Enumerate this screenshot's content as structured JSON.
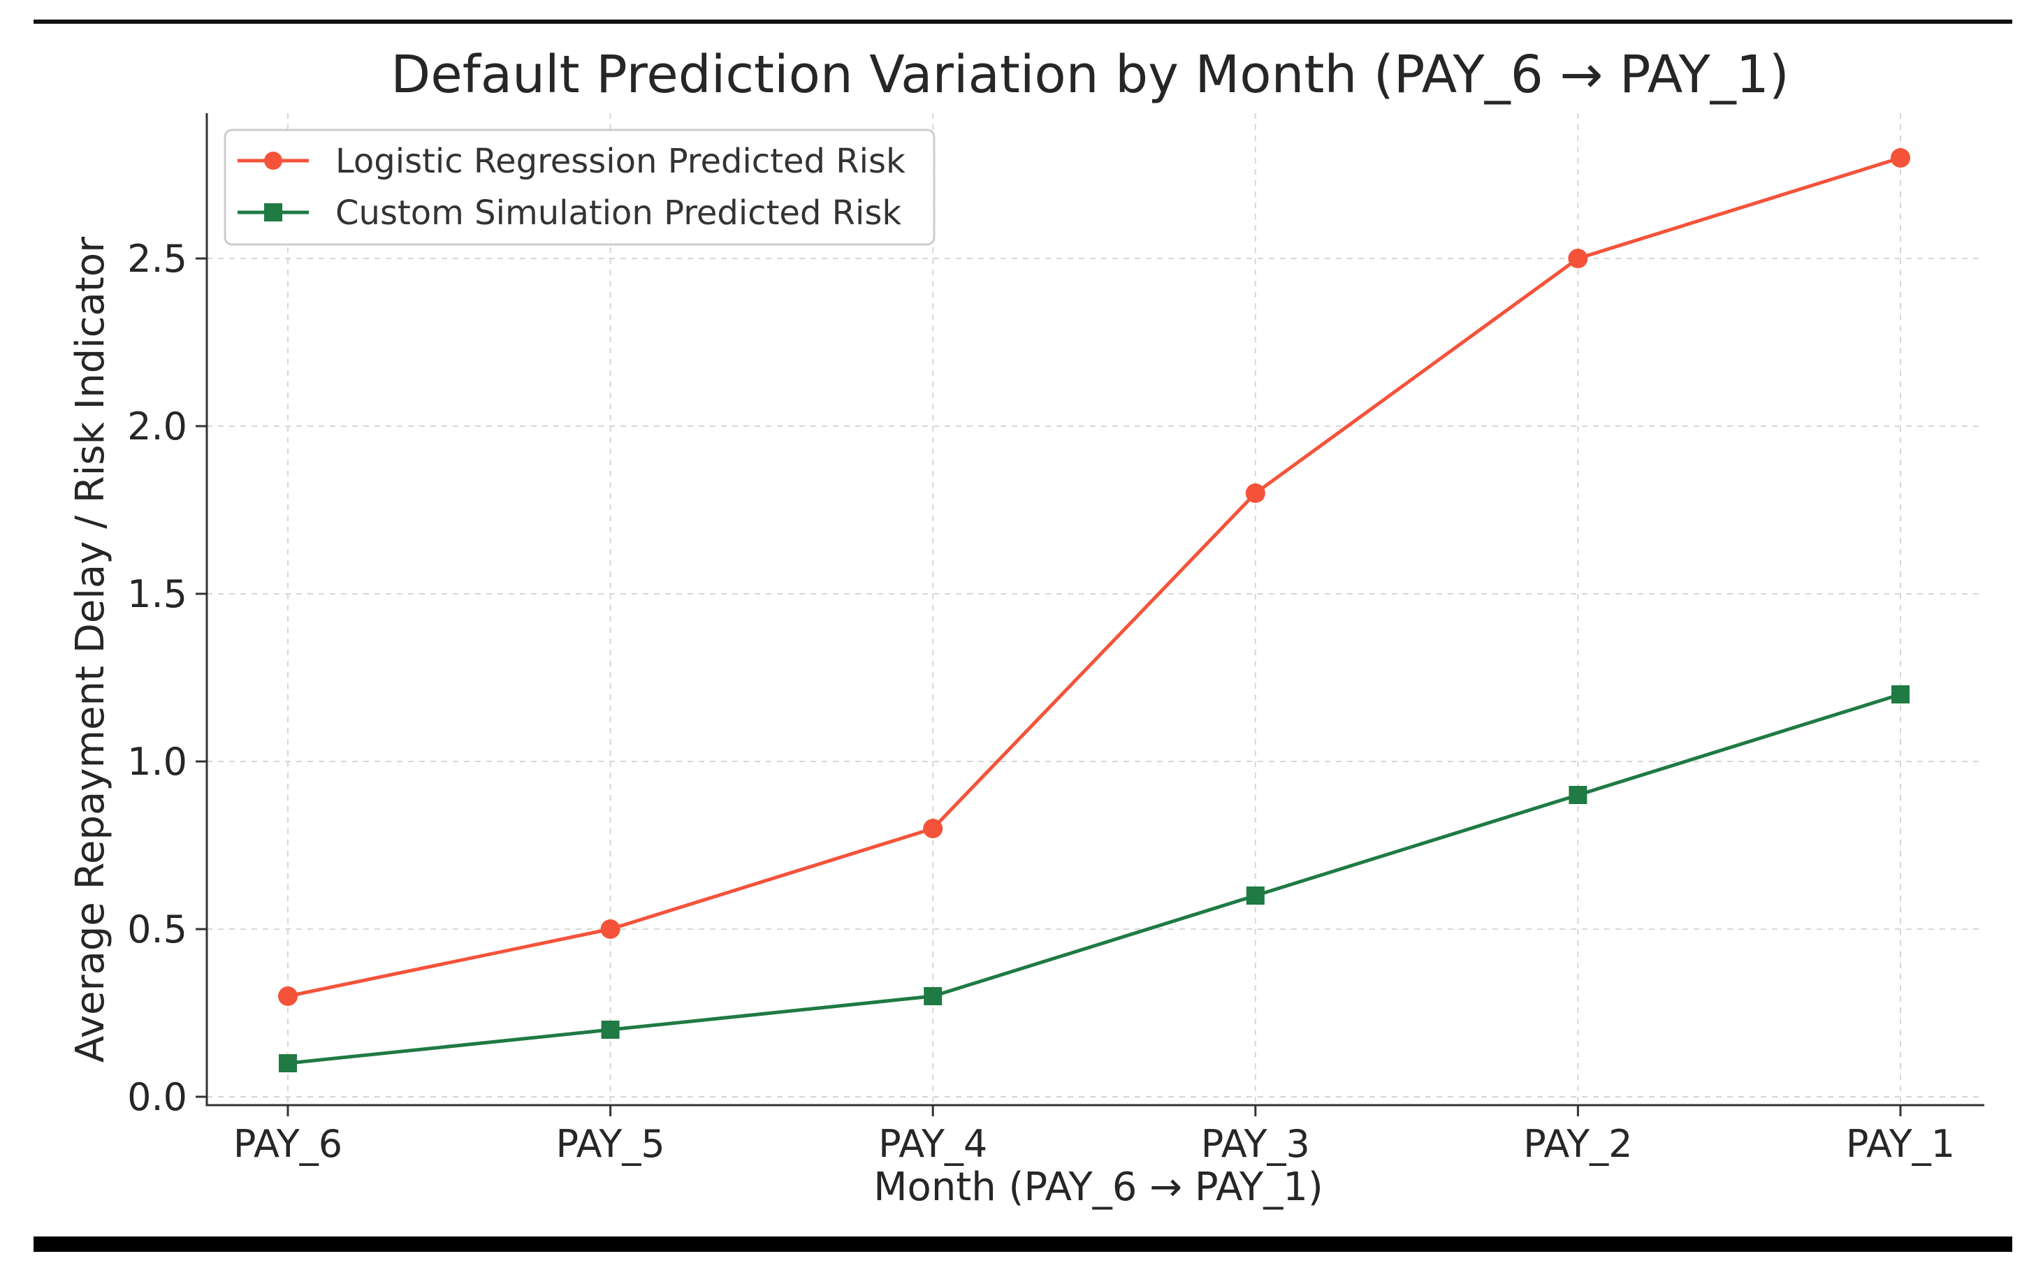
{
  "chart_data": {
    "type": "line",
    "title": "Default Prediction Variation by Month (PAY_6 → PAY_1)",
    "xlabel": "Month (PAY_6 → PAY_1)",
    "ylabel": "Average Repayment Delay / Risk Indicator",
    "categories": [
      "PAY_6",
      "PAY_5",
      "PAY_4",
      "PAY_3",
      "PAY_2",
      "PAY_1"
    ],
    "ylim": [
      0,
      2.8
    ],
    "yticks": [
      "0.0",
      "0.5",
      "1.0",
      "1.5",
      "2.0",
      "2.5"
    ],
    "grid": true,
    "legend_position": "top-left",
    "series": [
      {
        "name": "Logistic Regression Predicted Risk",
        "values": [
          0.3,
          0.5,
          0.8,
          1.8,
          2.5,
          2.8
        ],
        "color": "#f4533a",
        "marker": "circle"
      },
      {
        "name": "Custom Simulation Predicted Risk",
        "values": [
          0.1,
          0.2,
          0.3,
          0.6,
          0.9,
          1.2
        ],
        "color": "#1f7a43",
        "marker": "square"
      }
    ]
  }
}
